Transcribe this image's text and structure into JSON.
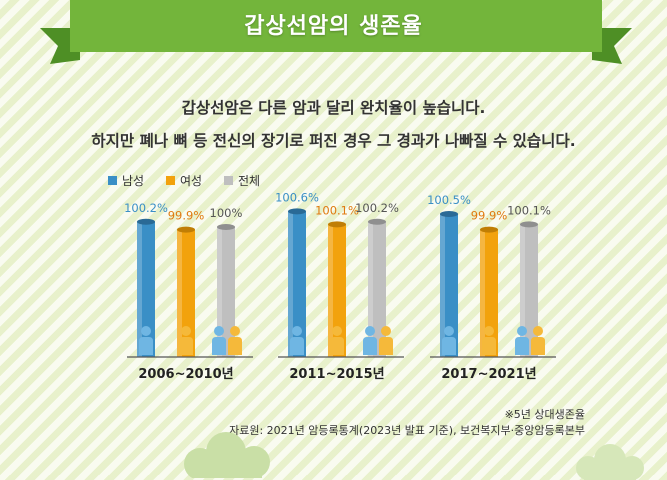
{
  "title": "갑상선암의 생존율",
  "description": [
    "갑상선암은 다른 암과 달리 완치율이 높습니다.",
    "하지만 폐나 뼈 등 전신의 장기로 퍼진 경우 그 경과가 나빠질 수 있습니다."
  ],
  "note": "※5년 상대생존율",
  "source": "자료원: 2021년 암등록통계(2023년 발표 기준), 보건복지부·중앙암등록본부",
  "colors": {
    "banner": "#73b53b",
    "male": "#3a8fc6",
    "female": "#f2a20d",
    "total": "#bfbfbf"
  },
  "chart_data": {
    "type": "bar",
    "title": "갑상선암의 생존율",
    "categories": [
      "2006~2010년",
      "2011~2015년",
      "2017~2021년"
    ],
    "series": [
      {
        "name": "남성",
        "values": [
          100.2,
          100.6,
          100.5
        ],
        "labels": [
          "100.2%",
          "100.6%",
          "100.5%"
        ]
      },
      {
        "name": "여성",
        "values": [
          99.9,
          100.1,
          99.9
        ],
        "labels": [
          "99.9%",
          "100.1%",
          "99.9%"
        ]
      },
      {
        "name": "전체",
        "values": [
          100.0,
          100.2,
          100.1
        ],
        "labels": [
          "100%",
          "100.2%",
          "100.1%"
        ]
      }
    ],
    "legend_position": "top-left",
    "grid": false
  }
}
